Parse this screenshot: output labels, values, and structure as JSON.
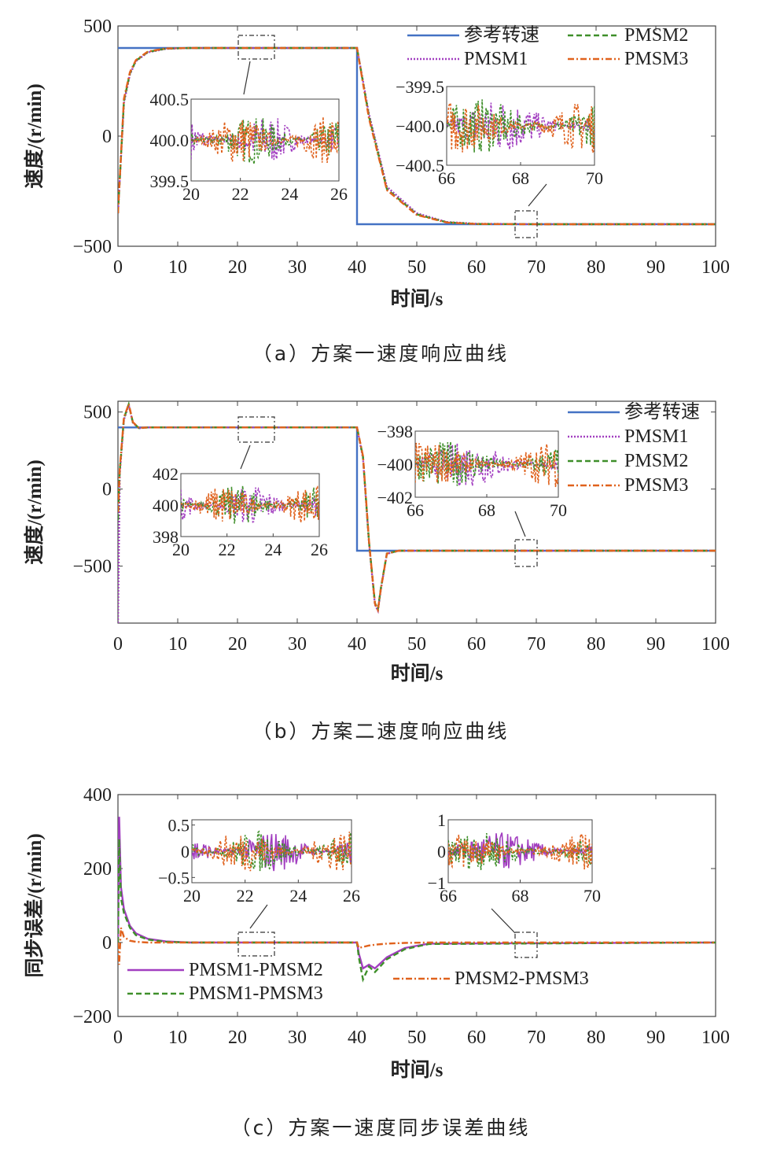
{
  "colors": {
    "reference": "#4472c4",
    "pmsm1": "#a23ec0",
    "pmsm2": "#3f8f2a",
    "pmsm3": "#e0621d",
    "axis": "#444444"
  },
  "chart_data": [
    {
      "id": "a",
      "type": "line",
      "caption": "（a）方案一速度响应曲线",
      "xlabel": "时间/s",
      "ylabel": "速度/(r/min)",
      "xlim": [
        0,
        100
      ],
      "ylim": [
        -500,
        500
      ],
      "xticks": [
        "0",
        "10",
        "20",
        "30",
        "40",
        "50",
        "60",
        "70",
        "80",
        "90",
        "100"
      ],
      "yticks": [
        "500",
        "0",
        "−500"
      ],
      "yticks_values": [
        500,
        0,
        -500
      ],
      "legend": [
        "参考转速",
        "PMSM1",
        "PMSM2",
        "PMSM3"
      ],
      "series": [
        {
          "name": "参考转速",
          "x": [
            0,
            40,
            40,
            100
          ],
          "values": [
            400,
            400,
            -400,
            -400
          ]
        },
        {
          "name": "PMSM1",
          "x": [
            0,
            1,
            2,
            3,
            5,
            8,
            12,
            20,
            40,
            42,
            45,
            50,
            55,
            60,
            70,
            100
          ],
          "values": [
            -350,
            150,
            280,
            340,
            380,
            396,
            400,
            400,
            400,
            100,
            -230,
            -350,
            -390,
            -398,
            -400,
            -400
          ]
        },
        {
          "name": "PMSM2",
          "x": [
            0,
            1,
            2,
            3,
            5,
            8,
            12,
            20,
            40,
            42,
            45,
            50,
            55,
            60,
            70,
            100
          ],
          "values": [
            -350,
            160,
            285,
            342,
            382,
            397,
            400,
            400,
            400,
            90,
            -240,
            -355,
            -391,
            -399,
            -400,
            -400
          ]
        },
        {
          "name": "PMSM3",
          "x": [
            0,
            1,
            2,
            3,
            5,
            8,
            12,
            20,
            40,
            42,
            45,
            50,
            55,
            60,
            70,
            100
          ],
          "values": [
            -350,
            170,
            290,
            345,
            384,
            398,
            400,
            400,
            400,
            80,
            -245,
            -358,
            -392,
            -399,
            -400,
            -400
          ]
        }
      ],
      "insets": [
        {
          "xlim": [
            20,
            26
          ],
          "ylim": [
            399.5,
            400.5
          ],
          "xticks": [
            "20",
            "22",
            "24",
            "26"
          ],
          "yticks": [
            "400.5",
            "400.0",
            "399.5"
          ],
          "yticks_values": [
            400.5,
            400.0,
            399.5
          ],
          "center": 400.0,
          "amplitude": 0.3
        },
        {
          "xlim": [
            66,
            70
          ],
          "ylim": [
            -400.5,
            -399.5
          ],
          "xticks": [
            "66",
            "68",
            "70"
          ],
          "yticks": [
            "−399.5",
            "−400.0",
            "−400.5"
          ],
          "yticks_values": [
            -399.5,
            -400.0,
            -400.5
          ],
          "center": -400.0,
          "amplitude": 0.35
        }
      ]
    },
    {
      "id": "b",
      "type": "line",
      "caption": "（b）方案二速度响应曲线",
      "xlabel": "时间/s",
      "ylabel": "速度/(r/min)",
      "xlim": [
        0,
        100
      ],
      "ylim": [
        -870,
        570
      ],
      "xticks": [
        "0",
        "10",
        "20",
        "30",
        "40",
        "50",
        "60",
        "70",
        "80",
        "90",
        "100"
      ],
      "yticks": [
        "500",
        "0",
        "−500"
      ],
      "yticks_values": [
        500,
        0,
        -500
      ],
      "legend": [
        "参考转速",
        "PMSM1",
        "PMSM2",
        "PMSM3"
      ],
      "series": [
        {
          "name": "参考转速",
          "x": [
            0,
            40,
            40,
            100
          ],
          "values": [
            400,
            400,
            -400,
            -400
          ]
        },
        {
          "name": "PMSM1",
          "x": [
            0,
            0.3,
            1,
            1.8,
            2.5,
            3.5,
            5,
            40,
            41,
            42,
            43,
            43.5,
            44,
            45,
            47,
            100
          ],
          "values": [
            -870,
            100,
            450,
            545,
            430,
            395,
            400,
            400,
            200,
            -350,
            -750,
            -790,
            -650,
            -420,
            -400,
            -400
          ]
        },
        {
          "name": "PMSM2",
          "x": [
            0,
            0.3,
            1,
            1.8,
            2.5,
            3.5,
            5,
            40,
            41,
            42,
            43,
            43.5,
            44,
            45,
            47,
            100
          ],
          "values": [
            -200,
            120,
            460,
            550,
            432,
            396,
            400,
            400,
            210,
            -340,
            -740,
            -780,
            -640,
            -418,
            -400,
            -400
          ]
        },
        {
          "name": "PMSM3",
          "x": [
            0,
            0.3,
            1,
            1.8,
            2.5,
            3.5,
            5,
            40,
            41,
            42,
            43,
            43.5,
            44,
            45,
            47,
            100
          ],
          "values": [
            -150,
            130,
            465,
            552,
            434,
            397,
            400,
            400,
            215,
            -335,
            -745,
            -785,
            -645,
            -419,
            -400,
            -400
          ]
        }
      ],
      "insets": [
        {
          "xlim": [
            20,
            26
          ],
          "ylim": [
            398,
            402
          ],
          "xticks": [
            "20",
            "22",
            "24",
            "26"
          ],
          "yticks": [
            "402",
            "400",
            "398"
          ],
          "yticks_values": [
            402,
            400,
            398
          ],
          "center": 400,
          "amplitude": 1.3
        },
        {
          "xlim": [
            66,
            70
          ],
          "ylim": [
            -402,
            -398
          ],
          "xticks": [
            "66",
            "68",
            "70"
          ],
          "yticks": [
            "−398",
            "−400",
            "−402"
          ],
          "yticks_values": [
            -398,
            -400,
            -402
          ],
          "center": -400,
          "amplitude": 1.4
        }
      ]
    },
    {
      "id": "c",
      "type": "line",
      "caption": "（c）方案一速度同步误差曲线",
      "xlabel": "时间/s",
      "ylabel": "同步误差/(r/min)",
      "xlim": [
        0,
        100
      ],
      "ylim": [
        -200,
        400
      ],
      "xticks": [
        "0",
        "10",
        "20",
        "30",
        "40",
        "50",
        "60",
        "70",
        "80",
        "90",
        "100"
      ],
      "yticks": [
        "400",
        "200",
        "0",
        "−200"
      ],
      "yticks_values": [
        400,
        200,
        0,
        -200
      ],
      "legend": [
        "PMSM1-PMSM2",
        "PMSM1-PMSM3",
        "PMSM2-PMSM3"
      ],
      "series": [
        {
          "name": "PMSM1-PMSM2",
          "x": [
            0,
            0.2,
            0.5,
            1,
            2,
            3,
            5,
            8,
            12,
            40,
            40.3,
            41,
            42,
            43,
            45,
            48,
            52,
            100
          ],
          "values": [
            0,
            340,
            150,
            90,
            45,
            25,
            10,
            3,
            0,
            0,
            -30,
            -70,
            -60,
            -70,
            -40,
            -15,
            -3,
            0
          ]
        },
        {
          "name": "PMSM1-PMSM3",
          "x": [
            0,
            0.2,
            0.5,
            1,
            2,
            3,
            5,
            8,
            12,
            40,
            40.3,
            41,
            42,
            43,
            45,
            48,
            52,
            100
          ],
          "values": [
            0,
            280,
            120,
            80,
            40,
            20,
            8,
            2,
            0,
            0,
            -40,
            -100,
            -65,
            -80,
            -45,
            -18,
            -4,
            0
          ]
        },
        {
          "name": "PMSM2-PMSM3",
          "x": [
            0,
            0.2,
            0.5,
            1,
            2,
            3,
            5,
            8,
            12,
            40,
            40.3,
            41,
            42,
            43,
            45,
            48,
            52,
            100
          ],
          "values": [
            0,
            -60,
            40,
            15,
            5,
            2,
            0,
            0,
            0,
            0,
            -15,
            -12,
            -8,
            -6,
            -3,
            -1,
            0,
            0
          ]
        }
      ],
      "insets": [
        {
          "xlim": [
            20,
            26
          ],
          "ylim": [
            -0.6,
            0.6
          ],
          "xticks": [
            "20",
            "22",
            "24",
            "26"
          ],
          "yticks": [
            "0.5",
            "0",
            "−0.5"
          ],
          "yticks_values": [
            0.5,
            0,
            -0.5
          ],
          "center": 0,
          "amplitude": 0.4
        },
        {
          "xlim": [
            66,
            70
          ],
          "ylim": [
            -1,
            1
          ],
          "xticks": [
            "66",
            "68",
            "70"
          ],
          "yticks": [
            "1",
            "0",
            "−1"
          ],
          "yticks_values": [
            1,
            0,
            -1
          ],
          "center": 0,
          "amplitude": 0.6
        }
      ]
    }
  ]
}
